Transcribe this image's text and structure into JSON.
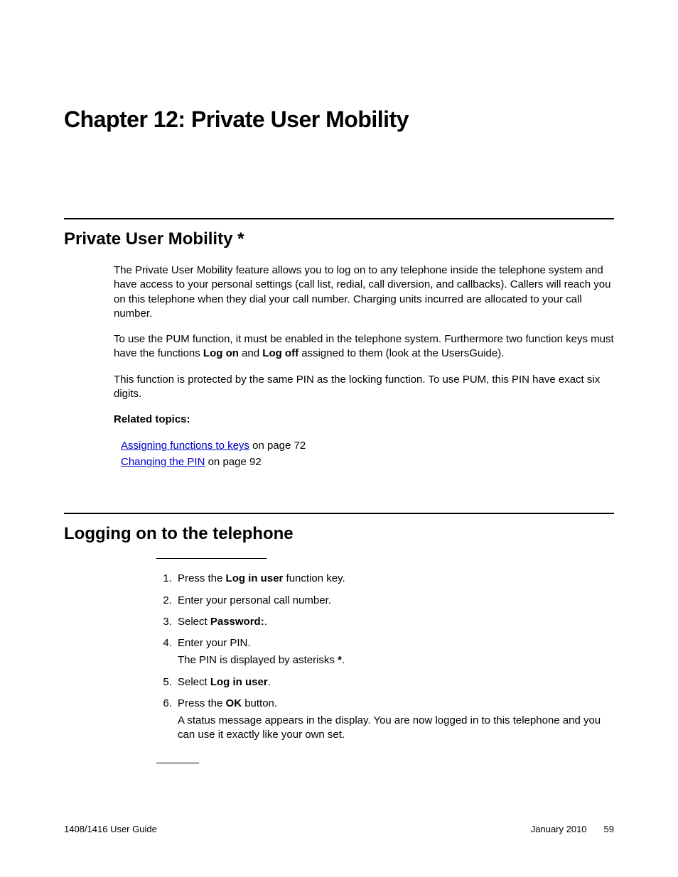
{
  "chapter": {
    "title": "Chapter 12: Private User Mobility"
  },
  "section1": {
    "heading": "Private User Mobility *",
    "para1": "The Private User Mobility feature allows you to log on to any telephone inside the telephone system and have access to your personal settings (call list, redial, call diversion, and callbacks). Callers will reach you on this telephone when they dial your call number. Charging units incurred are allocated to your call number.",
    "para2_pre": "To use the PUM function, it must be enabled in the telephone system. Furthermore two function keys must have the functions ",
    "para2_b1": "Log on",
    "para2_mid": " and ",
    "para2_b2": "Log off",
    "para2_post": " assigned to them (look at the UsersGuide).",
    "para3": "This function is protected by the same PIN as the locking function. To use PUM, this PIN have exact six digits.",
    "related_heading": "Related topics:",
    "related": [
      {
        "link": "Assigning functions to keys",
        "suffix": " on page 72"
      },
      {
        "link": "Changing the PIN",
        "suffix": " on page 92"
      }
    ]
  },
  "section2": {
    "heading": "Logging on to the telephone",
    "steps": [
      {
        "pre": "Press the ",
        "b": "Log in user",
        "post": " function key."
      },
      {
        "pre": "Enter your personal call number.",
        "b": "",
        "post": ""
      },
      {
        "pre": "Select ",
        "b": "Password:",
        "post": "."
      },
      {
        "pre": "Enter your PIN.",
        "b": "",
        "post": "",
        "sub_pre": "The PIN is displayed by asterisks ",
        "sub_b": "*",
        "sub_post": "."
      },
      {
        "pre": "Select ",
        "b": "Log in user",
        "post": "."
      },
      {
        "pre": "Press the ",
        "b": "OK",
        "post": " button.",
        "sub_pre": "A status message appears in the display. You are now logged in to this telephone and you can use it exactly like your own set.",
        "sub_b": "",
        "sub_post": ""
      }
    ]
  },
  "footer": {
    "left": "1408/1416 User Guide",
    "date": "January 2010",
    "page": "59"
  },
  "colors": {
    "link": "#0000cc",
    "text": "#000000",
    "background": "#ffffff"
  }
}
